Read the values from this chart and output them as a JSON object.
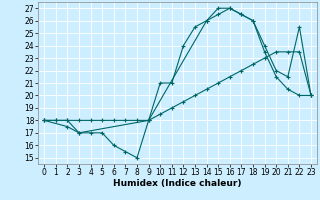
{
  "title": "",
  "xlabel": "Humidex (Indice chaleur)",
  "bg_color": "#cceeff",
  "grid_color": "#ffffff",
  "line_color": "#006666",
  "xlim": [
    -0.5,
    23.5
  ],
  "ylim": [
    14.5,
    27.5
  ],
  "xticks": [
    0,
    1,
    2,
    3,
    4,
    5,
    6,
    7,
    8,
    9,
    10,
    11,
    12,
    13,
    14,
    15,
    16,
    17,
    18,
    19,
    20,
    21,
    22,
    23
  ],
  "yticks": [
    15,
    16,
    17,
    18,
    19,
    20,
    21,
    22,
    23,
    24,
    25,
    26,
    27
  ],
  "line1_x": [
    0,
    1,
    2,
    3,
    4,
    5,
    6,
    7,
    8,
    9,
    10,
    11,
    12,
    13,
    14,
    15,
    16,
    17,
    18,
    19,
    20,
    21,
    22,
    23
  ],
  "line1_y": [
    18,
    18,
    18,
    17,
    17,
    17,
    16,
    15.5,
    15,
    18,
    21,
    21,
    24,
    25.5,
    26,
    27,
    27,
    26.5,
    26,
    23.5,
    21.5,
    20.5,
    20,
    20
  ],
  "line2_x": [
    0,
    1,
    2,
    3,
    4,
    5,
    6,
    7,
    8,
    9,
    10,
    11,
    12,
    13,
    14,
    15,
    16,
    17,
    18,
    19,
    20,
    21,
    22,
    23
  ],
  "line2_y": [
    18,
    18,
    18,
    18,
    18,
    18,
    18,
    18,
    18,
    18,
    18.5,
    19,
    19.5,
    20,
    20.5,
    21,
    21.5,
    22,
    22.5,
    23,
    23.5,
    23.5,
    23.5,
    20
  ],
  "line3_x": [
    0,
    2,
    3,
    9,
    14,
    15,
    16,
    17,
    18,
    19,
    20,
    21,
    22,
    23
  ],
  "line3_y": [
    18,
    17.5,
    17,
    18,
    26,
    26.5,
    27,
    26.5,
    26,
    24,
    22,
    21.5,
    25.5,
    20
  ],
  "tick_fontsize": 5.5,
  "xlabel_fontsize": 6.5,
  "marker_size": 3,
  "linewidth": 0.8
}
